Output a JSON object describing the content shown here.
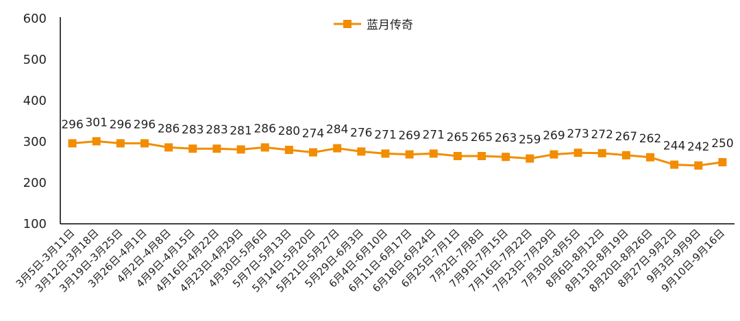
{
  "chart_data": {
    "type": "line",
    "title": "",
    "xlabel": "",
    "ylabel": "",
    "ylim": [
      100,
      600
    ],
    "yticks": [
      100,
      200,
      300,
      400,
      500,
      600
    ],
    "grid": false,
    "legend_position": "top-center",
    "categories": [
      "3月5日-3月11日",
      "3月12日-3月18日",
      "3月19日-3月25日",
      "3月26日-4月1日",
      "4月2日-4月8日",
      "4月9日-4月15日",
      "4月16日-4月22日",
      "4月23日-4月29日",
      "4月30日-5月6日",
      "5月7日-5月13日",
      "5月14日-5月20日",
      "5月21日-5月27日",
      "5月29日-6月3日",
      "6月4日-6月10日",
      "6月11日-6月17日",
      "6月18日-6月24日",
      "6月25日-7月1日",
      "7月2日-7月8日",
      "7月9日-7月15日",
      "7月16日-7月22日",
      "7月23日-7月29日",
      "7月30日-8月5日",
      "8月6日-8月12日",
      "8月13日-8月19日",
      "8月20日-8月26日",
      "8月27日-9月2日",
      "9月3日-9月9日",
      "9月10日-9月16日"
    ],
    "series": [
      {
        "name": "蓝月传奇",
        "color": "#f28c00",
        "values": [
          296,
          301,
          296,
          296,
          286,
          283,
          283,
          281,
          286,
          280,
          274,
          284,
          276,
          271,
          269,
          271,
          265,
          265,
          263,
          259,
          269,
          273,
          272,
          267,
          262,
          244,
          242,
          250
        ]
      }
    ]
  }
}
